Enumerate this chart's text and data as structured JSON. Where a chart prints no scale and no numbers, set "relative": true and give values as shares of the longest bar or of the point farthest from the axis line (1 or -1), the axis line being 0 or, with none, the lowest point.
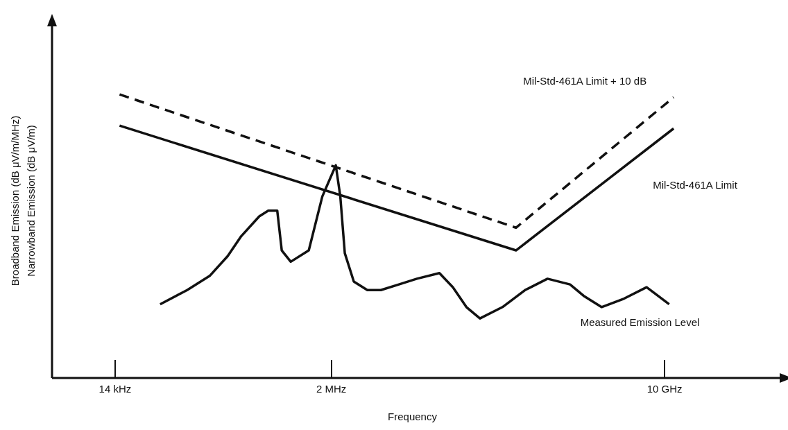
{
  "chart_data": {
    "type": "line",
    "relative": true,
    "xlabel": "Frequency",
    "ylabel": "Broadband Emission (dB μV/m/MHz)\nNarrowband Emission (dB μV/m)",
    "grid": false,
    "legend": false,
    "marker": "none",
    "categories": [
      null,
      null,
      null,
      null,
      null,
      null,
      null,
      null,
      null,
      null,
      null,
      null,
      null,
      null,
      "14 kHz",
      null,
      null,
      null,
      null,
      null,
      null,
      null,
      null,
      null,
      null,
      null,
      null,
      null,
      null,
      null,
      null,
      null,
      null,
      null,
      null,
      null,
      null,
      null,
      null,
      null,
      null,
      null,
      null,
      null,
      null,
      null,
      null,
      null,
      null,
      null,
      null,
      null,
      null,
      null,
      null,
      null,
      null,
      null,
      null,
      null,
      null,
      null,
      "2 MHz",
      null,
      null,
      null,
      null,
      null,
      null,
      null,
      null,
      null,
      null,
      null,
      null,
      null,
      null,
      null,
      null,
      null,
      null,
      null,
      null,
      null,
      null,
      null,
      null,
      null,
      null,
      null,
      null,
      null,
      null,
      null,
      null,
      null,
      null,
      null,
      null,
      null,
      null,
      null,
      null,
      null,
      null,
      null,
      null,
      null,
      null,
      null,
      null,
      null,
      null,
      null,
      null,
      null,
      null,
      null,
      null,
      null,
      null,
      null,
      null,
      null,
      null,
      null,
      null,
      null,
      null,
      null,
      null,
      null,
      null,
      null,
      null,
      null,
      "10 GHz",
      null,
      null,
      null,
      null,
      null,
      null,
      null,
      null,
      null,
      null,
      null,
      null,
      null,
      null,
      null,
      null,
      null,
      null,
      null,
      null,
      null,
      null,
      null,
      null
    ],
    "series": [
      {
        "name": "Mil-Std-461A Limit + 10 dB",
        "color": "#111111",
        "line_style": "dashed",
        "values": [
          null,
          null,
          null,
          null,
          null,
          null,
          null,
          null,
          null,
          null,
          null,
          null,
          null,
          null,
          null,
          1.0,
          null,
          null,
          null,
          null,
          null,
          null,
          null,
          null,
          null,
          null,
          null,
          null,
          null,
          null,
          null,
          null,
          null,
          null,
          null,
          null,
          null,
          null,
          null,
          null,
          null,
          null,
          null,
          null,
          null,
          null,
          null,
          null,
          null,
          null,
          null,
          null,
          null,
          null,
          null,
          null,
          null,
          null,
          null,
          null,
          null,
          null,
          null,
          null,
          null,
          null,
          null,
          null,
          null,
          null,
          null,
          null,
          null,
          null,
          null,
          null,
          null,
          null,
          null,
          null,
          null,
          null,
          null,
          null,
          null,
          null,
          null,
          null,
          null,
          null,
          null,
          null,
          null,
          null,
          null,
          null,
          null,
          null,
          null,
          null,
          null,
          null,
          null,
          0.53,
          null,
          null,
          null,
          null,
          null,
          null,
          null,
          null,
          null,
          null,
          null,
          null,
          null,
          null,
          null,
          null,
          null,
          null,
          null,
          null,
          null,
          null,
          null,
          null,
          null,
          null,
          null,
          null,
          null,
          null,
          null,
          null,
          null,
          null,
          0.99,
          null,
          null,
          null,
          null,
          null,
          null,
          null,
          null,
          null,
          null,
          null,
          null,
          null,
          null,
          null,
          null,
          null,
          null,
          null,
          null,
          null,
          null
        ]
      },
      {
        "name": "Mil-Std-461A Limit",
        "color": "#111111",
        "line_style": "solid",
        "values": [
          null,
          null,
          null,
          null,
          null,
          null,
          null,
          null,
          null,
          null,
          null,
          null,
          null,
          null,
          null,
          0.89,
          null,
          null,
          null,
          null,
          null,
          null,
          null,
          null,
          null,
          null,
          null,
          null,
          null,
          null,
          null,
          null,
          null,
          null,
          null,
          null,
          null,
          null,
          null,
          null,
          null,
          null,
          null,
          null,
          null,
          null,
          null,
          null,
          null,
          null,
          null,
          null,
          null,
          null,
          null,
          null,
          null,
          null,
          null,
          null,
          null,
          null,
          null,
          null,
          null,
          null,
          null,
          null,
          null,
          null,
          null,
          null,
          null,
          null,
          null,
          null,
          null,
          null,
          null,
          null,
          null,
          null,
          null,
          null,
          null,
          null,
          null,
          null,
          null,
          null,
          null,
          null,
          null,
          null,
          null,
          null,
          null,
          null,
          null,
          null,
          null,
          null,
          null,
          0.45,
          null,
          null,
          null,
          null,
          null,
          null,
          null,
          null,
          null,
          null,
          null,
          null,
          null,
          null,
          null,
          null,
          null,
          null,
          null,
          null,
          null,
          null,
          null,
          null,
          null,
          null,
          null,
          null,
          null,
          null,
          null,
          null,
          null,
          null,
          0.88,
          null,
          null,
          null,
          null,
          null,
          null,
          null,
          null,
          null,
          null,
          null,
          null,
          null,
          null,
          null,
          null,
          null,
          null,
          null,
          null,
          null,
          null
        ]
      },
      {
        "name": "Measured Emission Level",
        "color": "#111111",
        "line_style": "solid",
        "values": [
          null,
          null,
          null,
          null,
          null,
          null,
          null,
          null,
          null,
          null,
          null,
          null,
          null,
          null,
          null,
          null,
          null,
          null,
          null,
          null,
          null,
          null,
          null,
          null,
          0.26,
          null,
          null,
          null,
          null,
          null,
          0.31,
          null,
          null,
          null,
          null,
          0.36,
          null,
          null,
          null,
          0.43,
          null,
          null,
          0.5,
          null,
          null,
          null,
          0.57,
          null,
          0.59,
          null,
          0.59,
          0.45,
          null,
          0.41,
          null,
          null,
          null,
          0.45,
          null,
          null,
          0.64,
          null,
          null,
          0.75,
          0.64,
          0.44,
          null,
          0.34,
          null,
          null,
          0.31,
          null,
          null,
          0.31,
          null,
          null,
          null,
          0.33,
          null,
          null,
          null,
          0.35,
          null,
          null,
          null,
          null,
          0.37,
          null,
          null,
          0.32,
          null,
          null,
          0.25,
          null,
          null,
          0.21,
          null,
          null,
          null,
          null,
          0.25,
          null,
          null,
          null,
          null,
          0.31,
          null,
          null,
          null,
          null,
          0.35,
          null,
          null,
          null,
          null,
          0.33,
          null,
          null,
          0.29,
          null,
          null,
          null,
          0.25,
          null,
          null,
          null,
          null,
          0.28,
          null,
          null,
          null,
          null,
          0.32,
          null,
          null,
          null,
          null,
          0.26,
          null,
          null,
          null,
          null,
          null,
          null,
          null,
          null,
          null,
          null,
          null,
          null,
          null,
          null,
          null,
          null,
          null,
          null,
          null,
          null,
          null,
          null,
          null
        ]
      }
    ]
  }
}
